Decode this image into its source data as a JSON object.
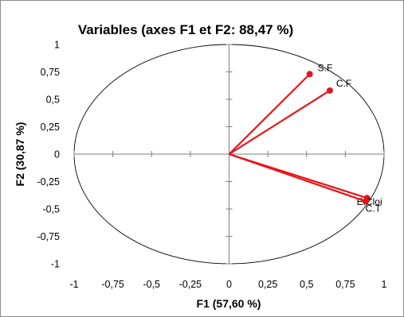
{
  "chart_data": {
    "type": "scatter",
    "subtype": "correlation-circle",
    "title": "Variables (axes F1 et F2: 88,47 %)",
    "xlabel": "F1 (57,60 %)",
    "ylabel": "F2 (30,87 %)",
    "xlim": [
      -1,
      1
    ],
    "ylim": [
      -1,
      1
    ],
    "x_ticks": [
      "-1",
      "-0,75",
      "-0,5",
      "-0,25",
      "0",
      "0,25",
      "0,5",
      "0,75",
      "1"
    ],
    "y_ticks": [
      "-1",
      "-0,75",
      "-0,5",
      "-0,25",
      "0",
      "0,25",
      "0,5",
      "0,75",
      "1"
    ],
    "grid": false,
    "unit_circle": true,
    "colors": {
      "vector": "#e8141a",
      "circle": "#000000",
      "axes": "#7f7f7f"
    },
    "variables": [
      {
        "label": "S.F",
        "x": 0.52,
        "y": 0.73
      },
      {
        "label": "C.F",
        "x": 0.65,
        "y": 0.58
      },
      {
        "label": "E.Cloi",
        "x": 0.89,
        "y": -0.4
      },
      {
        "label": "C.T",
        "x": 0.88,
        "y": -0.43
      }
    ]
  }
}
